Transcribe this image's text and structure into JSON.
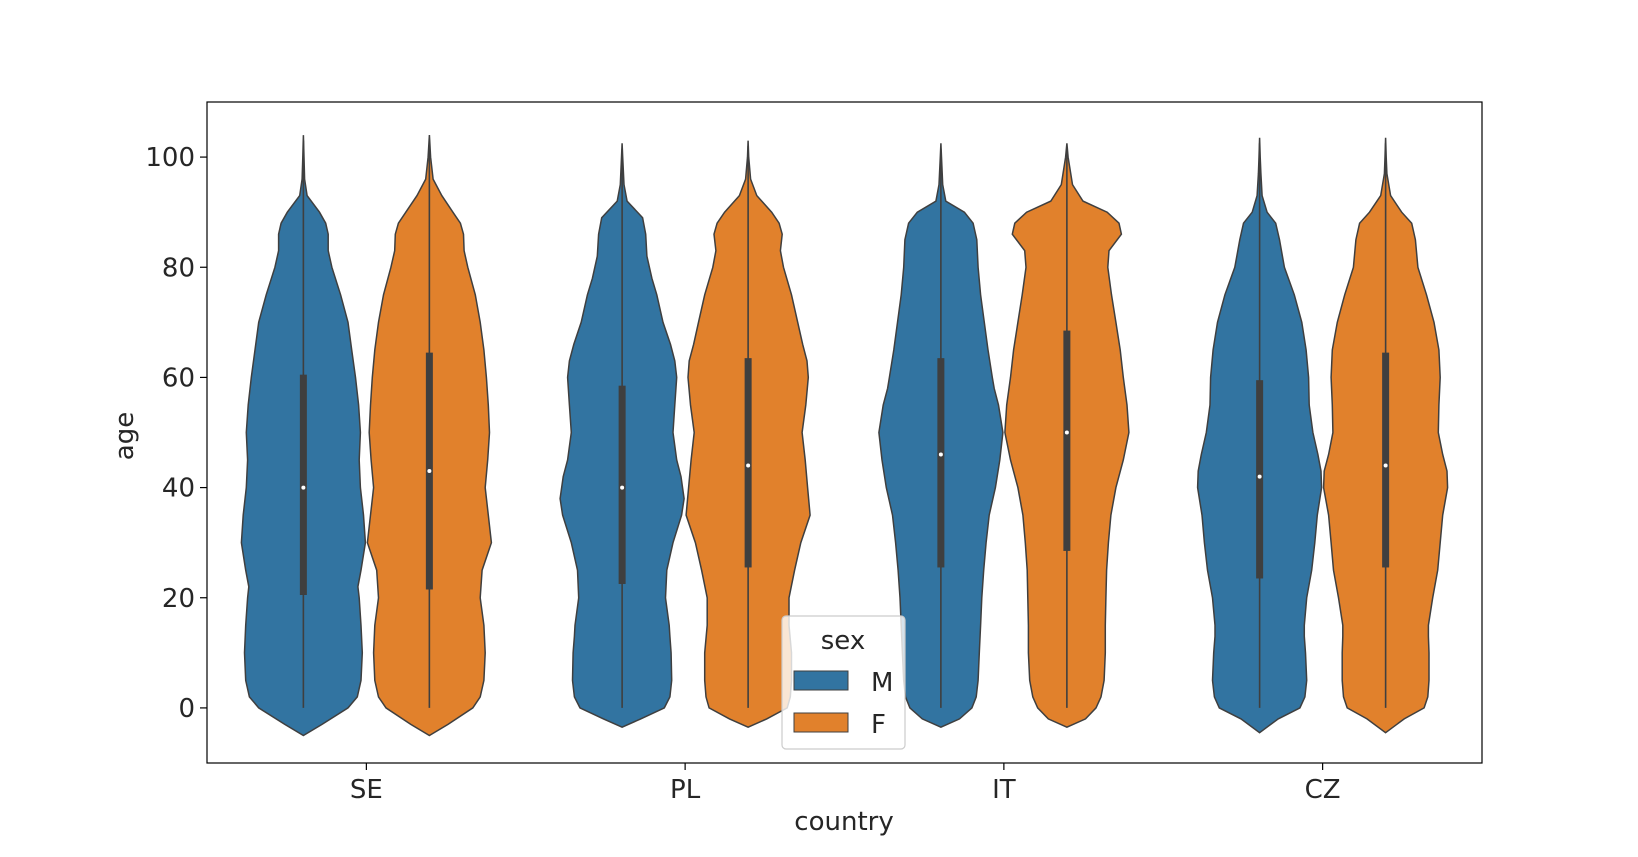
{
  "chart_data": {
    "type": "violin",
    "xlabel": "country",
    "ylabel": "age",
    "categories": [
      "SE",
      "PL",
      "IT",
      "CZ"
    ],
    "hue_title": "sex",
    "ylim": [
      -10,
      110
    ],
    "yticks": [
      0,
      20,
      40,
      60,
      80,
      100
    ],
    "colors": {
      "M": "#3274a1",
      "F": "#e1812c",
      "box": "#3f3f3f",
      "outline": "#3f3f3f",
      "median": "#ffffff"
    },
    "series": [
      {
        "name": "M",
        "violins": [
          {
            "country": "SE",
            "min": -5,
            "max": 104,
            "q1": 20.5,
            "median": 40,
            "q3": 60.5,
            "profile": [
              [
                -5,
                0.0
              ],
              [
                -3,
                0.3
              ],
              [
                0,
                0.72
              ],
              [
                2,
                0.87
              ],
              [
                5,
                0.93
              ],
              [
                10,
                0.95
              ],
              [
                15,
                0.93
              ],
              [
                20,
                0.9
              ],
              [
                22,
                0.88
              ],
              [
                25,
                0.93
              ],
              [
                30,
                1.0
              ],
              [
                35,
                0.97
              ],
              [
                40,
                0.92
              ],
              [
                45,
                0.9
              ],
              [
                50,
                0.92
              ],
              [
                55,
                0.89
              ],
              [
                60,
                0.84
              ],
              [
                65,
                0.78
              ],
              [
                70,
                0.72
              ],
              [
                75,
                0.6
              ],
              [
                80,
                0.46
              ],
              [
                83,
                0.4
              ],
              [
                86,
                0.4
              ],
              [
                88,
                0.36
              ],
              [
                90,
                0.26
              ],
              [
                93,
                0.06
              ],
              [
                96,
                0.02
              ],
              [
                100,
                0.01
              ],
              [
                104,
                0.0
              ]
            ]
          },
          {
            "country": "PL",
            "min": -3.5,
            "max": 102.5,
            "q1": 22.5,
            "median": 40,
            "q3": 58.5,
            "profile": [
              [
                -3.5,
                0.0
              ],
              [
                -2,
                0.3
              ],
              [
                0,
                0.68
              ],
              [
                2,
                0.77
              ],
              [
                5,
                0.8
              ],
              [
                10,
                0.79
              ],
              [
                13,
                0.77
              ],
              [
                15,
                0.76
              ],
              [
                20,
                0.7
              ],
              [
                25,
                0.72
              ],
              [
                30,
                0.82
              ],
              [
                35,
                0.96
              ],
              [
                38,
                1.0
              ],
              [
                42,
                0.95
              ],
              [
                45,
                0.88
              ],
              [
                50,
                0.82
              ],
              [
                55,
                0.85
              ],
              [
                60,
                0.88
              ],
              [
                63,
                0.85
              ],
              [
                66,
                0.78
              ],
              [
                70,
                0.66
              ],
              [
                75,
                0.56
              ],
              [
                78,
                0.48
              ],
              [
                82,
                0.4
              ],
              [
                86,
                0.38
              ],
              [
                89,
                0.33
              ],
              [
                92,
                0.08
              ],
              [
                95,
                0.03
              ],
              [
                100,
                0.01
              ],
              [
                102.5,
                0.0
              ]
            ]
          },
          {
            "country": "IT",
            "min": -3.5,
            "max": 102.5,
            "q1": 25.5,
            "median": 46,
            "q3": 63.5,
            "profile": [
              [
                -3.5,
                0.0
              ],
              [
                -2,
                0.3
              ],
              [
                0,
                0.5
              ],
              [
                2,
                0.57
              ],
              [
                5,
                0.6
              ],
              [
                10,
                0.62
              ],
              [
                15,
                0.64
              ],
              [
                20,
                0.66
              ],
              [
                25,
                0.69
              ],
              [
                30,
                0.73
              ],
              [
                35,
                0.78
              ],
              [
                40,
                0.88
              ],
              [
                45,
                0.95
              ],
              [
                50,
                1.0
              ],
              [
                55,
                0.93
              ],
              [
                58,
                0.86
              ],
              [
                60,
                0.83
              ],
              [
                65,
                0.76
              ],
              [
                70,
                0.7
              ],
              [
                75,
                0.64
              ],
              [
                80,
                0.6
              ],
              [
                85,
                0.58
              ],
              [
                88,
                0.52
              ],
              [
                90,
                0.38
              ],
              [
                92,
                0.08
              ],
              [
                95,
                0.03
              ],
              [
                100,
                0.01
              ],
              [
                102.5,
                0.0
              ]
            ]
          },
          {
            "country": "CZ",
            "min": -4.5,
            "max": 103.5,
            "q1": 23.5,
            "median": 42,
            "q3": 59.5,
            "profile": [
              [
                -4.5,
                0.0
              ],
              [
                -2,
                0.3
              ],
              [
                0,
                0.65
              ],
              [
                2,
                0.73
              ],
              [
                5,
                0.76
              ],
              [
                10,
                0.74
              ],
              [
                13,
                0.72
              ],
              [
                15,
                0.72
              ],
              [
                20,
                0.76
              ],
              [
                25,
                0.84
              ],
              [
                30,
                0.89
              ],
              [
                35,
                0.93
              ],
              [
                40,
                1.0
              ],
              [
                43,
                0.99
              ],
              [
                46,
                0.94
              ],
              [
                50,
                0.86
              ],
              [
                55,
                0.8
              ],
              [
                60,
                0.79
              ],
              [
                65,
                0.75
              ],
              [
                70,
                0.68
              ],
              [
                75,
                0.56
              ],
              [
                80,
                0.4
              ],
              [
                85,
                0.32
              ],
              [
                88,
                0.26
              ],
              [
                90,
                0.12
              ],
              [
                93,
                0.04
              ],
              [
                97,
                0.02
              ],
              [
                100,
                0.01
              ],
              [
                103.5,
                0.0
              ]
            ]
          }
        ]
      },
      {
        "name": "F",
        "violins": [
          {
            "country": "SE",
            "min": -5,
            "max": 104,
            "q1": 21.5,
            "median": 43,
            "q3": 64.5,
            "profile": [
              [
                -5,
                0.0
              ],
              [
                -3,
                0.3
              ],
              [
                0,
                0.7
              ],
              [
                2,
                0.82
              ],
              [
                5,
                0.88
              ],
              [
                10,
                0.9
              ],
              [
                15,
                0.88
              ],
              [
                20,
                0.82
              ],
              [
                25,
                0.85
              ],
              [
                30,
                1.0
              ],
              [
                35,
                0.95
              ],
              [
                40,
                0.9
              ],
              [
                45,
                0.94
              ],
              [
                50,
                0.97
              ],
              [
                55,
                0.95
              ],
              [
                60,
                0.92
              ],
              [
                65,
                0.88
              ],
              [
                70,
                0.82
              ],
              [
                75,
                0.74
              ],
              [
                80,
                0.62
              ],
              [
                83,
                0.56
              ],
              [
                86,
                0.55
              ],
              [
                88,
                0.5
              ],
              [
                90,
                0.38
              ],
              [
                93,
                0.2
              ],
              [
                96,
                0.06
              ],
              [
                100,
                0.02
              ],
              [
                104,
                0.0
              ]
            ]
          },
          {
            "country": "PL",
            "min": -3.5,
            "max": 103,
            "q1": 25.5,
            "median": 44,
            "q3": 63.5,
            "profile": [
              [
                -3.5,
                0.0
              ],
              [
                -2,
                0.3
              ],
              [
                0,
                0.63
              ],
              [
                2,
                0.68
              ],
              [
                5,
                0.7
              ],
              [
                10,
                0.7
              ],
              [
                15,
                0.66
              ],
              [
                20,
                0.66
              ],
              [
                25,
                0.75
              ],
              [
                30,
                0.85
              ],
              [
                35,
                1.0
              ],
              [
                40,
                0.96
              ],
              [
                45,
                0.92
              ],
              [
                50,
                0.87
              ],
              [
                55,
                0.93
              ],
              [
                60,
                0.97
              ],
              [
                63,
                0.95
              ],
              [
                66,
                0.88
              ],
              [
                70,
                0.8
              ],
              [
                75,
                0.7
              ],
              [
                80,
                0.57
              ],
              [
                83,
                0.52
              ],
              [
                86,
                0.55
              ],
              [
                88,
                0.5
              ],
              [
                90,
                0.38
              ],
              [
                93,
                0.14
              ],
              [
                96,
                0.04
              ],
              [
                100,
                0.01
              ],
              [
                103,
                0.0
              ]
            ]
          },
          {
            "country": "IT",
            "min": -3.5,
            "max": 102.5,
            "q1": 28.5,
            "median": 50,
            "q3": 68.5,
            "profile": [
              [
                -3.5,
                0.0
              ],
              [
                -2,
                0.3
              ],
              [
                0,
                0.47
              ],
              [
                2,
                0.55
              ],
              [
                5,
                0.6
              ],
              [
                10,
                0.62
              ],
              [
                15,
                0.62
              ],
              [
                20,
                0.63
              ],
              [
                25,
                0.64
              ],
              [
                30,
                0.67
              ],
              [
                35,
                0.71
              ],
              [
                40,
                0.79
              ],
              [
                45,
                0.91
              ],
              [
                50,
                1.0
              ],
              [
                55,
                0.97
              ],
              [
                60,
                0.91
              ],
              [
                65,
                0.86
              ],
              [
                70,
                0.79
              ],
              [
                75,
                0.72
              ],
              [
                80,
                0.66
              ],
              [
                83,
                0.68
              ],
              [
                86,
                0.88
              ],
              [
                88,
                0.84
              ],
              [
                90,
                0.65
              ],
              [
                92,
                0.26
              ],
              [
                95,
                0.09
              ],
              [
                100,
                0.02
              ],
              [
                102.5,
                0.0
              ]
            ]
          },
          {
            "country": "CZ",
            "min": -4.5,
            "max": 103.5,
            "q1": 25.5,
            "median": 44,
            "q3": 64.5,
            "profile": [
              [
                -4.5,
                0.0
              ],
              [
                -2,
                0.3
              ],
              [
                0,
                0.62
              ],
              [
                2,
                0.68
              ],
              [
                5,
                0.7
              ],
              [
                10,
                0.7
              ],
              [
                13,
                0.69
              ],
              [
                15,
                0.69
              ],
              [
                20,
                0.76
              ],
              [
                25,
                0.84
              ],
              [
                30,
                0.88
              ],
              [
                35,
                0.92
              ],
              [
                40,
                1.0
              ],
              [
                43,
                0.99
              ],
              [
                46,
                0.92
              ],
              [
                50,
                0.85
              ],
              [
                55,
                0.86
              ],
              [
                60,
                0.88
              ],
              [
                65,
                0.86
              ],
              [
                70,
                0.78
              ],
              [
                75,
                0.66
              ],
              [
                80,
                0.52
              ],
              [
                85,
                0.48
              ],
              [
                88,
                0.42
              ],
              [
                90,
                0.26
              ],
              [
                93,
                0.08
              ],
              [
                97,
                0.02
              ],
              [
                100,
                0.01
              ],
              [
                103.5,
                0.0
              ]
            ]
          }
        ]
      }
    ],
    "legend": {
      "title": "sex",
      "entries": [
        "M",
        "F"
      ],
      "location": "lower-center"
    }
  }
}
